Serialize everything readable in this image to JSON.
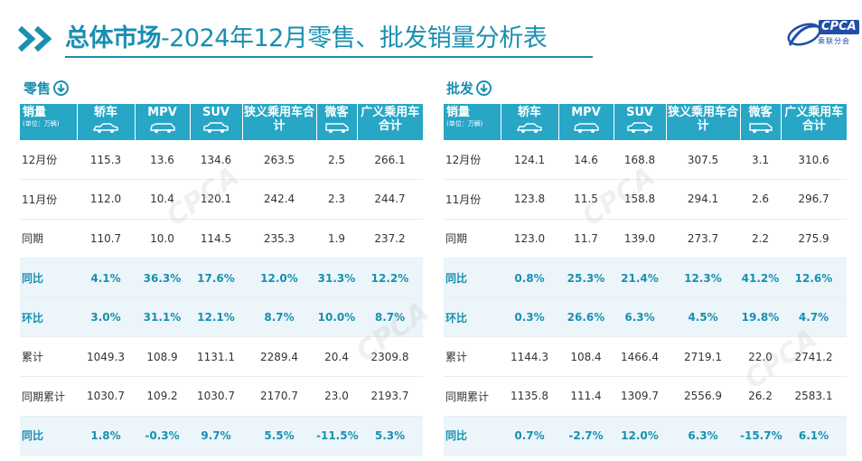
{
  "header": {
    "title_bold": "总体市场",
    "title_rest": "-2024年12月零售、批发销量分析表",
    "logo_text": "CPCA",
    "logo_sub": "乘联分会"
  },
  "columns": [
    {
      "label": "销量",
      "sub": "(单位：万辆)",
      "icon": ""
    },
    {
      "label": "轿车",
      "sub": "",
      "icon": "sedan-icon"
    },
    {
      "label": "MPV",
      "sub": "",
      "icon": "mpv-icon"
    },
    {
      "label": "SUV",
      "sub": "",
      "icon": "suv-icon"
    },
    {
      "label": "狭义乘用车合计",
      "sub": "",
      "icon": ""
    },
    {
      "label": "微客",
      "sub": "",
      "icon": "minivan-icon"
    },
    {
      "label": "广义乘用车合计",
      "sub": "",
      "icon": ""
    }
  ],
  "colors": {
    "accent": "#1a8fb0",
    "header_bg": "#27a6c6",
    "highlight_bg": "#ecf6fa"
  },
  "retail": {
    "label": "零售",
    "rows": [
      {
        "name": "12月份",
        "values": [
          "115.3",
          "13.6",
          "134.6",
          "263.5",
          "2.5",
          "266.1"
        ],
        "highlight": false
      },
      {
        "name": "11月份",
        "values": [
          "112.0",
          "10.4",
          "120.1",
          "242.4",
          "2.3",
          "244.7"
        ],
        "highlight": false
      },
      {
        "name": "同期",
        "values": [
          "110.7",
          "10.0",
          "114.5",
          "235.3",
          "1.9",
          "237.2"
        ],
        "highlight": false
      },
      {
        "name": "同比",
        "values": [
          "4.1%",
          "36.3%",
          "17.6%",
          "12.0%",
          "31.3%",
          "12.2%"
        ],
        "highlight": true
      },
      {
        "name": "环比",
        "values": [
          "3.0%",
          "31.1%",
          "12.1%",
          "8.7%",
          "10.0%",
          "8.7%"
        ],
        "highlight": true
      },
      {
        "name": "累计",
        "values": [
          "1049.3",
          "108.9",
          "1131.1",
          "2289.4",
          "20.4",
          "2309.8"
        ],
        "highlight": false
      },
      {
        "name": "同期累计",
        "values": [
          "1030.7",
          "109.2",
          "1030.7",
          "2170.7",
          "23.0",
          "2193.7"
        ],
        "highlight": false
      },
      {
        "name": "同比",
        "values": [
          "1.8%",
          "-0.3%",
          "9.7%",
          "5.5%",
          "-11.5%",
          "5.3%"
        ],
        "highlight": true
      }
    ]
  },
  "wholesale": {
    "label": "批发",
    "rows": [
      {
        "name": "12月份",
        "values": [
          "124.1",
          "14.6",
          "168.8",
          "307.5",
          "3.1",
          "310.6"
        ],
        "highlight": false
      },
      {
        "name": "11月份",
        "values": [
          "123.8",
          "11.5",
          "158.8",
          "294.1",
          "2.6",
          "296.7"
        ],
        "highlight": false
      },
      {
        "name": "同期",
        "values": [
          "123.0",
          "11.7",
          "139.0",
          "273.7",
          "2.2",
          "275.9"
        ],
        "highlight": false
      },
      {
        "name": "同比",
        "values": [
          "0.8%",
          "25.3%",
          "21.4%",
          "12.3%",
          "41.2%",
          "12.6%"
        ],
        "highlight": true
      },
      {
        "name": "环比",
        "values": [
          "0.3%",
          "26.6%",
          "6.3%",
          "4.5%",
          "19.8%",
          "4.7%"
        ],
        "highlight": true
      },
      {
        "name": "累计",
        "values": [
          "1144.3",
          "108.4",
          "1466.4",
          "2719.1",
          "22.0",
          "2741.2"
        ],
        "highlight": false
      },
      {
        "name": "同期累计",
        "values": [
          "1135.8",
          "111.4",
          "1309.7",
          "2556.9",
          "26.2",
          "2583.1"
        ],
        "highlight": false
      },
      {
        "name": "同比",
        "values": [
          "0.7%",
          "-2.7%",
          "12.0%",
          "6.3%",
          "-15.7%",
          "6.1%"
        ],
        "highlight": true
      }
    ]
  }
}
